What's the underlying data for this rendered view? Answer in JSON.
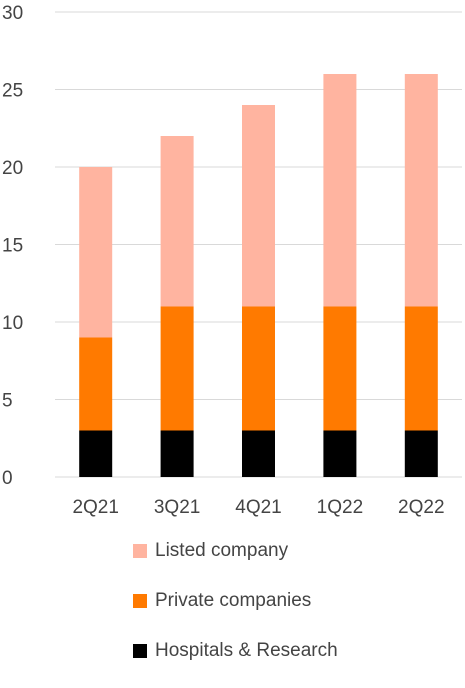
{
  "chart_data": {
    "type": "bar",
    "stacked": true,
    "categories": [
      "2Q21",
      "3Q21",
      "4Q21",
      "1Q22",
      "2Q22"
    ],
    "series": [
      {
        "name": "Hospitals & Research",
        "values": [
          3,
          3,
          3,
          3,
          3
        ],
        "color": "#000000"
      },
      {
        "name": "Private companies",
        "values": [
          6,
          8,
          8,
          8,
          8
        ],
        "color": "#FF7A00"
      },
      {
        "name": "Listed company",
        "values": [
          11,
          11,
          13,
          15,
          15
        ],
        "color": "#FFB4A0"
      }
    ],
    "ylim": [
      0,
      30
    ],
    "yticks": [
      "0",
      "5",
      "10",
      "15",
      "20",
      "25",
      "30"
    ],
    "grid": true,
    "legend_position": "bottom",
    "legend_order": [
      "Listed company",
      "Private companies",
      "Hospitals & Research"
    ]
  }
}
